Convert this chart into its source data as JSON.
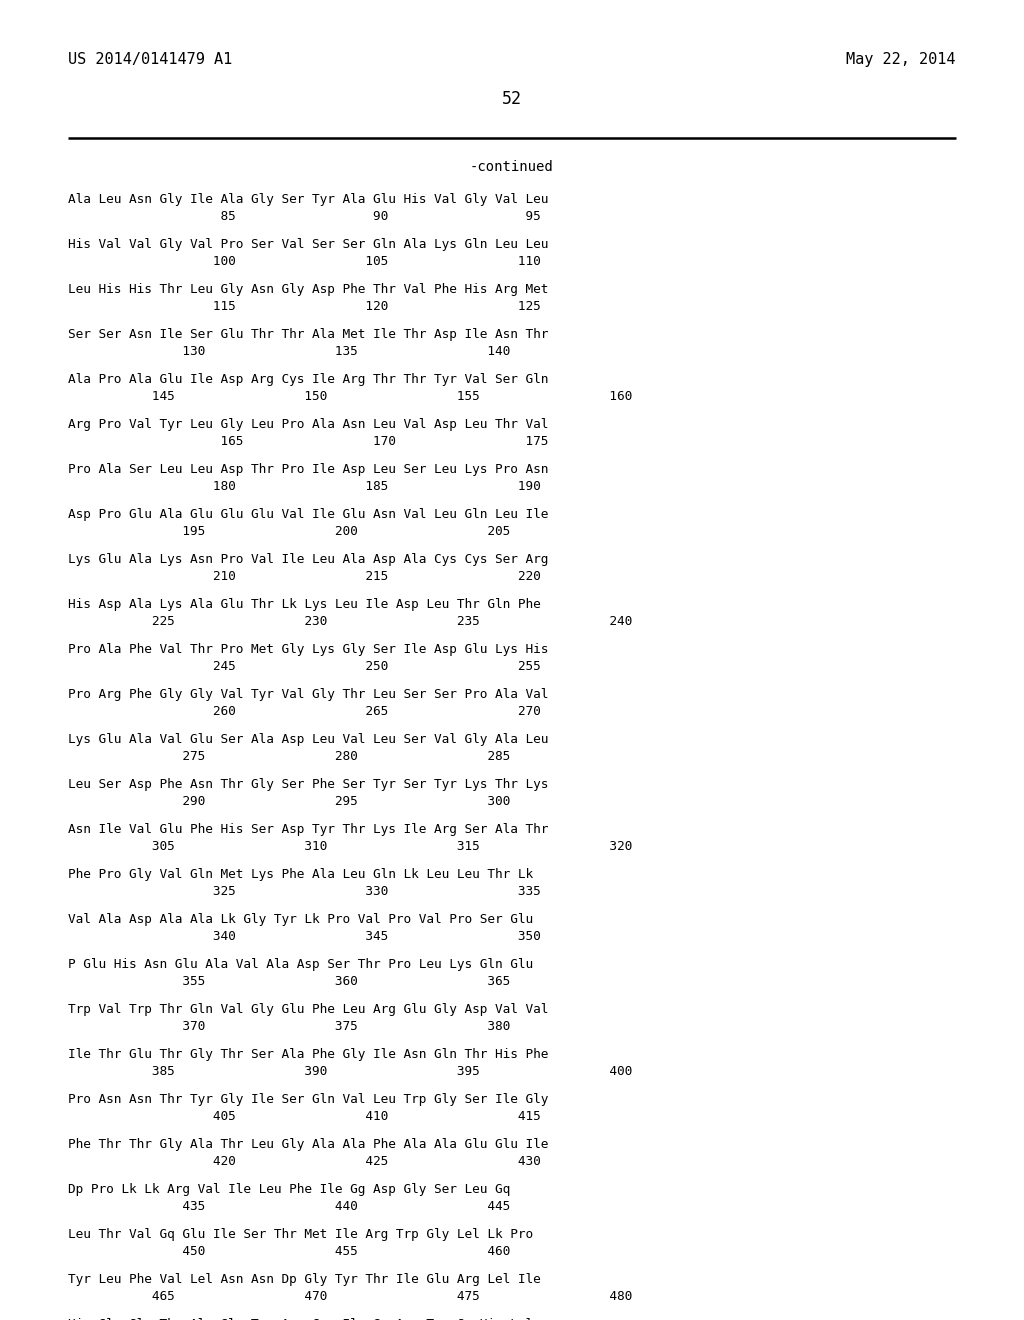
{
  "header_left": "US 2014/0141479 A1",
  "header_right": "May 22, 2014",
  "page_number": "52",
  "continued_label": "-continued",
  "bg": "#ffffff",
  "fg": "#000000",
  "seq_blocks": [
    [
      "Ala Leu Asn Gly Ile Ala Gly Ser Tyr Ala Glu His Val Gly Val Leu",
      "                    85                  90                  95"
    ],
    [
      "His Val Val Gly Val Pro Ser Val Ser Ser Gln Ala Lys Gln Leu Leu",
      "                   100                 105                 110"
    ],
    [
      "Leu His His Thr Leu Gly Asn Gly Asp Phe Thr Val Phe His Arg Met",
      "                   115                 120                 125"
    ],
    [
      "Ser Ser Asn Ile Ser Glu Thr Thr Ala Met Ile Thr Asp Ile Asn Thr",
      "               130                 135                 140"
    ],
    [
      "Ala Pro Ala Glu Ile Asp Arg Cys Ile Arg Thr Thr Tyr Val Ser Gln",
      "           145                 150                 155                 160"
    ],
    [
      "Arg Pro Val Tyr Leu Gly Leu Pro Ala Asn Leu Val Asp Leu Thr Val",
      "                    165                 170                 175"
    ],
    [
      "Pro Ala Ser Leu Leu Asp Thr Pro Ile Asp Leu Ser Leu Lys Pro Asn",
      "                   180                 185                 190"
    ],
    [
      "Asp Pro Glu Ala Glu Glu Glu Val Ile Glu Asn Val Leu Gln Leu Ile",
      "               195                 200                 205"
    ],
    [
      "Lys Glu Ala Lys Asn Pro Val Ile Leu Ala Asp Ala Cys Cys Ser Arg",
      "                   210                 215                 220"
    ],
    [
      "His Asp Ala Lys Ala Glu Thr Lk Lys Leu Ile Asp Leu Thr Gln Phe",
      "           225                 230                 235                 240"
    ],
    [
      "Pro Ala Phe Val Thr Pro Met Gly Lys Gly Ser Ile Asp Glu Lys His",
      "                   245                 250                 255"
    ],
    [
      "Pro Arg Phe Gly Gly Val Tyr Val Gly Thr Leu Ser Ser Pro Ala Val",
      "                   260                 265                 270"
    ],
    [
      "Lys Glu Ala Val Glu Ser Ala Asp Leu Val Leu Ser Val Gly Ala Leu",
      "               275                 280                 285"
    ],
    [
      "Leu Ser Asp Phe Asn Thr Gly Ser Phe Ser Tyr Ser Tyr Lys Thr Lys",
      "               290                 295                 300"
    ],
    [
      "Asn Ile Val Glu Phe His Ser Asp Tyr Thr Lys Ile Arg Ser Ala Thr",
      "           305                 310                 315                 320"
    ],
    [
      "Phe Pro Gly Val Gln Met Lys Phe Ala Leu Gln Lk Leu Leu Thr Lk",
      "                   325                 330                 335"
    ],
    [
      "Val Ala Asp Ala Ala Lk Gly Tyr Lk Pro Val Pro Val Pro Ser Glu",
      "                   340                 345                 350"
    ],
    [
      "P Glu His Asn Glu Ala Val Ala Asp Ser Thr Pro Leu Lys Gln Glu",
      "               355                 360                 365"
    ],
    [
      "Trp Val Trp Thr Gln Val Gly Glu Phe Leu Arg Glu Gly Asp Val Val",
      "               370                 375                 380"
    ],
    [
      "Ile Thr Glu Thr Gly Thr Ser Ala Phe Gly Ile Asn Gln Thr His Phe",
      "           385                 390                 395                 400"
    ],
    [
      "Pro Asn Asn Thr Tyr Gly Ile Ser Gln Val Leu Trp Gly Ser Ile Gly",
      "                   405                 410                 415"
    ],
    [
      "Phe Thr Thr Gly Ala Thr Leu Gly Ala Ala Phe Ala Ala Glu Glu Ile",
      "                   420                 425                 430"
    ],
    [
      "Dp Pro Lk Lk Arg Val Ile Leu Phe Ile Gg Asp Gly Ser Leu Gq",
      "               435                 440                 445"
    ],
    [
      "Leu Thr Val Gq Glu Ile Ser Thr Met Ile Arg Trp Gly Lel Lk Pro",
      "               450                 455                 460"
    ],
    [
      "Tyr Leu Phe Val Lel Asn Asn Dp Gly Tyr Thr Ile Glu Arg Lel Ile",
      "           465                 470                 475                 480"
    ],
    [
      "His Gly Glu Thr Ala Gln Tyr Asn Cys Ile Gq Asn Trp Gq His Lel",
      ""
    ]
  ]
}
